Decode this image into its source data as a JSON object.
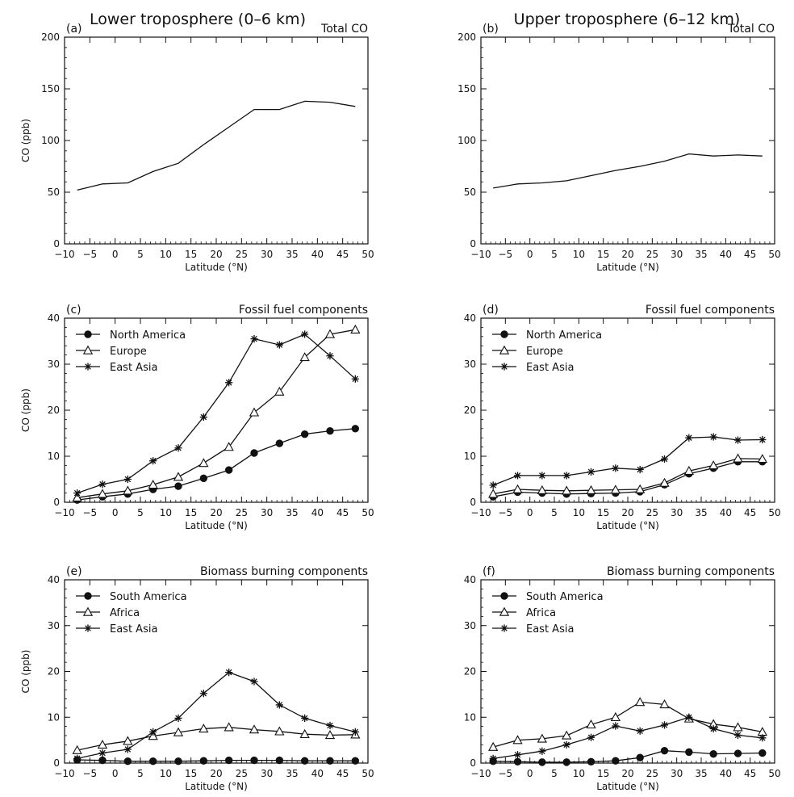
{
  "figure": {
    "column_titles": [
      "Lower troposphere (0–6 km)",
      "Upper troposphere (6–12 km)"
    ]
  },
  "chart_data": [
    {
      "panel": "(a)",
      "type": "line",
      "title": "Total CO",
      "xlabel": "Latitude (°N)",
      "ylabel": "CO (ppb)",
      "xlim": [
        -10,
        50
      ],
      "ylim": [
        0,
        200
      ],
      "xticks": [
        -10,
        -5,
        0,
        5,
        10,
        15,
        20,
        25,
        30,
        35,
        40,
        45,
        50
      ],
      "yticks": [
        0,
        50,
        100,
        150,
        200
      ],
      "x": [
        -7.5,
        -2.5,
        2.5,
        7.5,
        12.5,
        17.5,
        22.5,
        27.5,
        32.5,
        37.5,
        42.5,
        47.5
      ],
      "series": [
        {
          "name": "",
          "marker": "none",
          "values": [
            52,
            58,
            59,
            70,
            78,
            96,
            113,
            130,
            130,
            138,
            137,
            133
          ]
        }
      ]
    },
    {
      "panel": "(b)",
      "type": "line",
      "title": "Total CO",
      "xlabel": "Latitude (°N)",
      "ylabel": "",
      "xlim": [
        -10,
        50
      ],
      "ylim": [
        0,
        200
      ],
      "xticks": [
        -10,
        -5,
        0,
        5,
        10,
        15,
        20,
        25,
        30,
        35,
        40,
        45,
        50
      ],
      "yticks": [
        0,
        50,
        100,
        150,
        200
      ],
      "x": [
        -7.5,
        -2.5,
        2.5,
        7.5,
        12.5,
        17.5,
        22.5,
        27.5,
        32.5,
        37.5,
        42.5,
        47.5
      ],
      "series": [
        {
          "name": "",
          "marker": "none",
          "values": [
            54,
            58,
            59,
            61,
            66,
            71,
            75,
            80,
            87,
            85,
            86,
            85
          ]
        }
      ]
    },
    {
      "panel": "(c)",
      "type": "line",
      "title": "Fossil fuel components",
      "xlabel": "Latitude (°N)",
      "ylabel": "CO (ppb)",
      "xlim": [
        -10,
        50
      ],
      "ylim": [
        0,
        40
      ],
      "xticks": [
        -10,
        -5,
        0,
        5,
        10,
        15,
        20,
        25,
        30,
        35,
        40,
        45,
        50
      ],
      "yticks": [
        0,
        10,
        20,
        30,
        40
      ],
      "x": [
        -7.5,
        -2.5,
        2.5,
        7.5,
        12.5,
        17.5,
        22.5,
        27.5,
        32.5,
        37.5,
        42.5,
        47.5
      ],
      "series": [
        {
          "name": "North America",
          "marker": "circle",
          "values": [
            0.5,
            1.2,
            1.8,
            2.8,
            3.5,
            5.2,
            7.0,
            10.7,
            12.8,
            14.8,
            15.5,
            16.0
          ]
        },
        {
          "name": "Europe",
          "marker": "triangle",
          "values": [
            1.0,
            1.8,
            2.5,
            3.8,
            5.5,
            8.5,
            12.0,
            19.5,
            24.0,
            31.5,
            36.5,
            37.5
          ]
        },
        {
          "name": "East Asia",
          "marker": "star",
          "values": [
            2.0,
            3.9,
            5.0,
            9.0,
            11.8,
            18.5,
            26.0,
            35.5,
            34.2,
            36.5,
            31.8,
            26.8
          ]
        }
      ]
    },
    {
      "panel": "(d)",
      "type": "line",
      "title": "Fossil fuel components",
      "xlabel": "Latitude (°N)",
      "ylabel": "",
      "xlim": [
        -10,
        50
      ],
      "ylim": [
        0,
        40
      ],
      "xticks": [
        -10,
        -5,
        0,
        5,
        10,
        15,
        20,
        25,
        30,
        35,
        40,
        45,
        50
      ],
      "yticks": [
        0,
        10,
        20,
        30,
        40
      ],
      "x": [
        -7.5,
        -2.5,
        2.5,
        7.5,
        12.5,
        17.5,
        22.5,
        27.5,
        32.5,
        37.5,
        42.5,
        47.5
      ],
      "series": [
        {
          "name": "North America",
          "marker": "circle",
          "values": [
            1.2,
            2.2,
            2.0,
            1.8,
            1.9,
            2.0,
            2.3,
            3.8,
            6.2,
            7.4,
            8.8,
            8.8
          ]
        },
        {
          "name": "Europe",
          "marker": "triangle",
          "values": [
            1.8,
            2.8,
            2.6,
            2.5,
            2.6,
            2.7,
            2.8,
            4.2,
            6.8,
            8.0,
            9.5,
            9.4
          ]
        },
        {
          "name": "East Asia",
          "marker": "star",
          "values": [
            3.7,
            5.8,
            5.8,
            5.8,
            6.6,
            7.4,
            7.1,
            9.4,
            14.0,
            14.2,
            13.5,
            13.6
          ]
        }
      ]
    },
    {
      "panel": "(e)",
      "type": "line",
      "title": "Biomass burning components",
      "xlabel": "Latitude (°N)",
      "ylabel": "CO (ppb)",
      "xlim": [
        -10,
        50
      ],
      "ylim": [
        0,
        40
      ],
      "xticks": [
        -10,
        -5,
        0,
        5,
        10,
        15,
        20,
        25,
        30,
        35,
        40,
        45,
        50
      ],
      "yticks": [
        0,
        10,
        20,
        30,
        40
      ],
      "x": [
        -7.5,
        -2.5,
        2.5,
        7.5,
        12.5,
        17.5,
        22.5,
        27.5,
        32.5,
        37.5,
        42.5,
        47.5
      ],
      "series": [
        {
          "name": "South America",
          "marker": "circle",
          "values": [
            0.7,
            0.6,
            0.4,
            0.4,
            0.4,
            0.5,
            0.6,
            0.6,
            0.6,
            0.5,
            0.5,
            0.5
          ]
        },
        {
          "name": "Africa",
          "marker": "triangle",
          "values": [
            2.8,
            4.0,
            4.8,
            5.9,
            6.7,
            7.5,
            7.8,
            7.3,
            6.9,
            6.3,
            6.1,
            6.2
          ]
        },
        {
          "name": "East Asia",
          "marker": "star",
          "values": [
            1.0,
            2.2,
            3.0,
            6.8,
            9.8,
            15.2,
            19.8,
            17.8,
            12.7,
            9.8,
            8.2,
            6.8
          ]
        }
      ]
    },
    {
      "panel": "(f)",
      "type": "line",
      "title": "Biomass burning components",
      "xlabel": "Latitude (°N)",
      "ylabel": "",
      "xlim": [
        -10,
        50
      ],
      "ylim": [
        0,
        40
      ],
      "xticks": [
        -10,
        -5,
        0,
        5,
        10,
        15,
        20,
        25,
        30,
        35,
        40,
        45,
        50
      ],
      "yticks": [
        0,
        10,
        20,
        30,
        40
      ],
      "x": [
        -7.5,
        -2.5,
        2.5,
        7.5,
        12.5,
        17.5,
        22.5,
        27.5,
        32.5,
        37.5,
        42.5,
        47.5
      ],
      "series": [
        {
          "name": "South America",
          "marker": "circle",
          "values": [
            0.4,
            0.3,
            0.2,
            0.2,
            0.3,
            0.5,
            1.2,
            2.7,
            2.4,
            2.0,
            2.1,
            2.2
          ]
        },
        {
          "name": "Africa",
          "marker": "triangle",
          "values": [
            3.5,
            5.0,
            5.3,
            6.0,
            8.4,
            10.0,
            13.3,
            12.8,
            9.7,
            8.5,
            7.8,
            6.8
          ]
        },
        {
          "name": "East Asia",
          "marker": "star",
          "values": [
            1.0,
            1.8,
            2.6,
            4.0,
            5.6,
            8.1,
            7.0,
            8.3,
            10.0,
            7.5,
            6.1,
            5.5
          ]
        }
      ]
    }
  ]
}
